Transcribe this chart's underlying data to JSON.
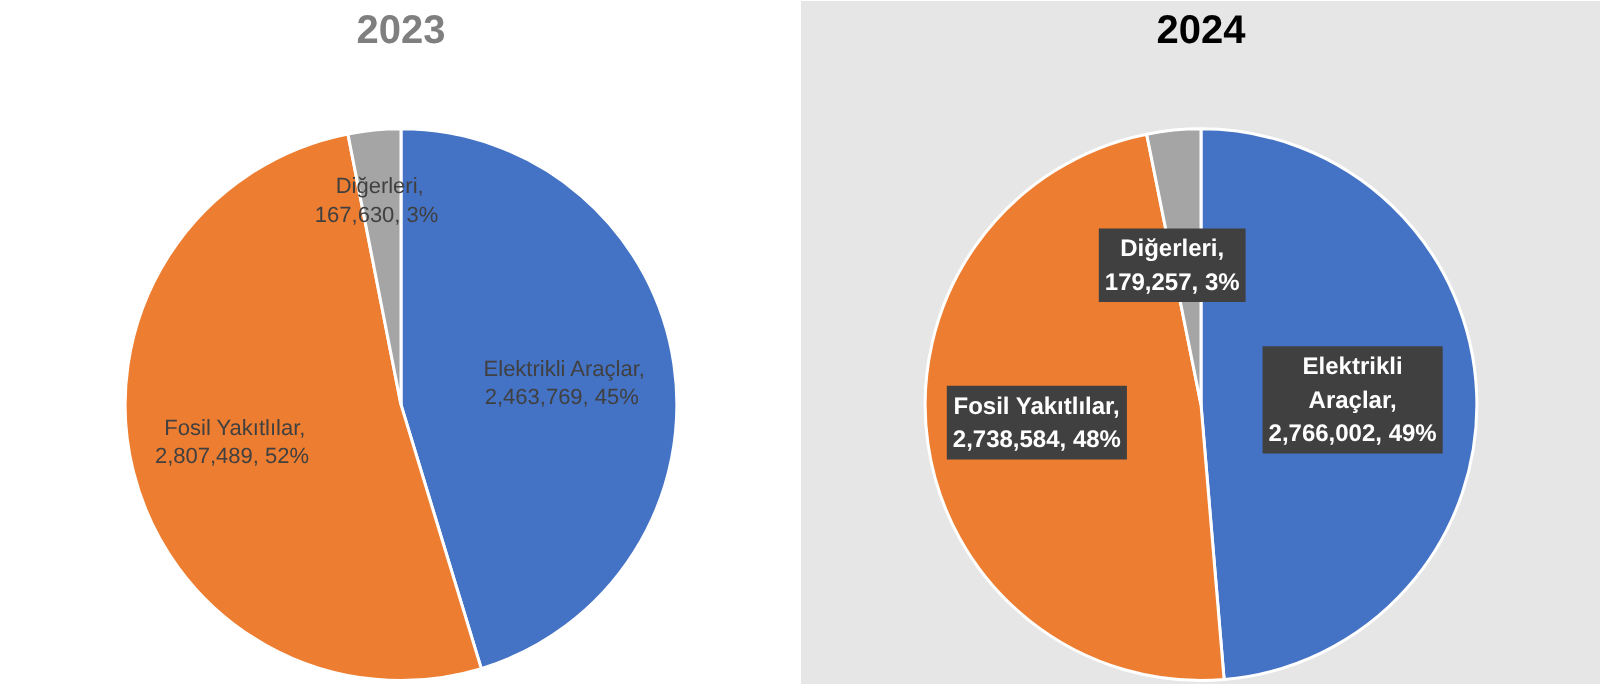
{
  "chart_data": [
    {
      "type": "pie",
      "title": "2023",
      "categories": [
        "Elektrikli Araçlar",
        "Fosil Yakıtlılar",
        "Diğerleri"
      ],
      "values": [
        2463769,
        2807489,
        167630
      ],
      "colors": [
        "#4472c4",
        "#ed7d31",
        "#a5a5a5"
      ],
      "value_labels": [
        ",\n2,463,769,  45%",
        ",\n2,807,489,  52%",
        ",\n167,630,  3%"
      ]
    },
    {
      "type": "pie",
      "title": "2024",
      "categories": [
        "Elektrikli Araçlar",
        "Fosil Yakıtlılar",
        "Diğerleri"
      ],
      "values": [
        2766002,
        2738584,
        179257
      ],
      "colors": [
        "#4472c4",
        "#ed7d31",
        "#a5a5a5"
      ],
      "value_labels": [
        ",\n2,766,002, 49%",
        ",\n2,738,584, 48%",
        ",\n179,257, 3%"
      ]
    }
  ]
}
